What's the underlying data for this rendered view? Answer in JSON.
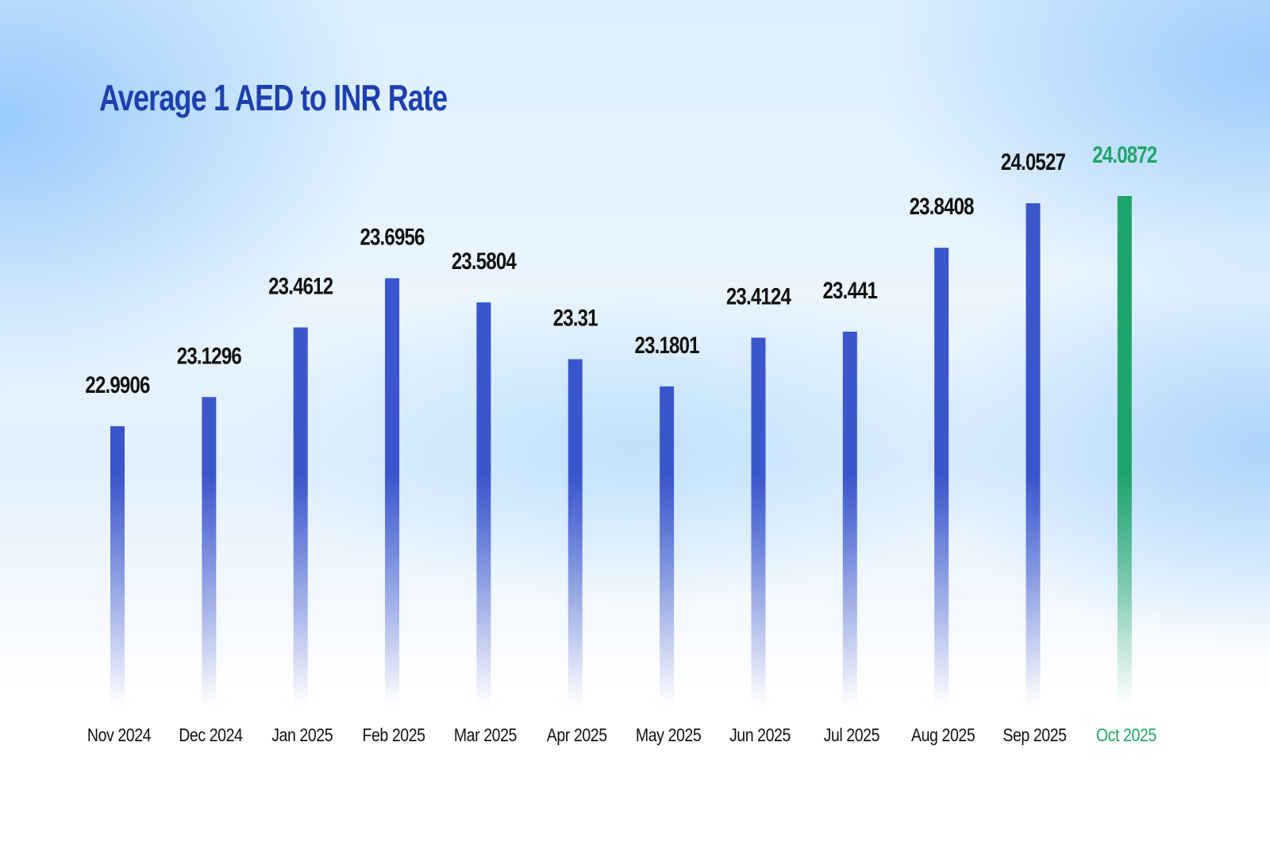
{
  "chart_data": {
    "type": "bar",
    "title": "Average 1 AED to INR Rate",
    "xlabel": "",
    "ylabel": "",
    "categories": [
      "Nov 2024",
      "Dec 2024",
      "Jan 2025",
      "Feb 2025",
      "Mar 2025",
      "Apr 2025",
      "May 2025",
      "Jun 2025",
      "Jul 2025",
      "Aug 2025",
      "Sep 2025",
      "Oct 2025"
    ],
    "values": [
      22.9906,
      23.1296,
      23.4612,
      23.6956,
      23.5804,
      23.31,
      23.1801,
      23.4124,
      23.441,
      23.8408,
      24.0527,
      24.0872
    ],
    "value_labels": [
      "22.9906",
      "23.1296",
      "23.4612",
      "23.6956",
      "23.5804",
      "23.31",
      "23.1801",
      "23.4124",
      "23.441",
      "23.8408",
      "24.0527",
      "24.0872"
    ],
    "ylim": [
      21.656,
      24.265
    ],
    "grid": false,
    "highlight_index": 11,
    "colors": {
      "bar": "#3b55cc",
      "highlight": "#1fa56b",
      "label": "#111111",
      "title": "#1d3fae"
    }
  }
}
